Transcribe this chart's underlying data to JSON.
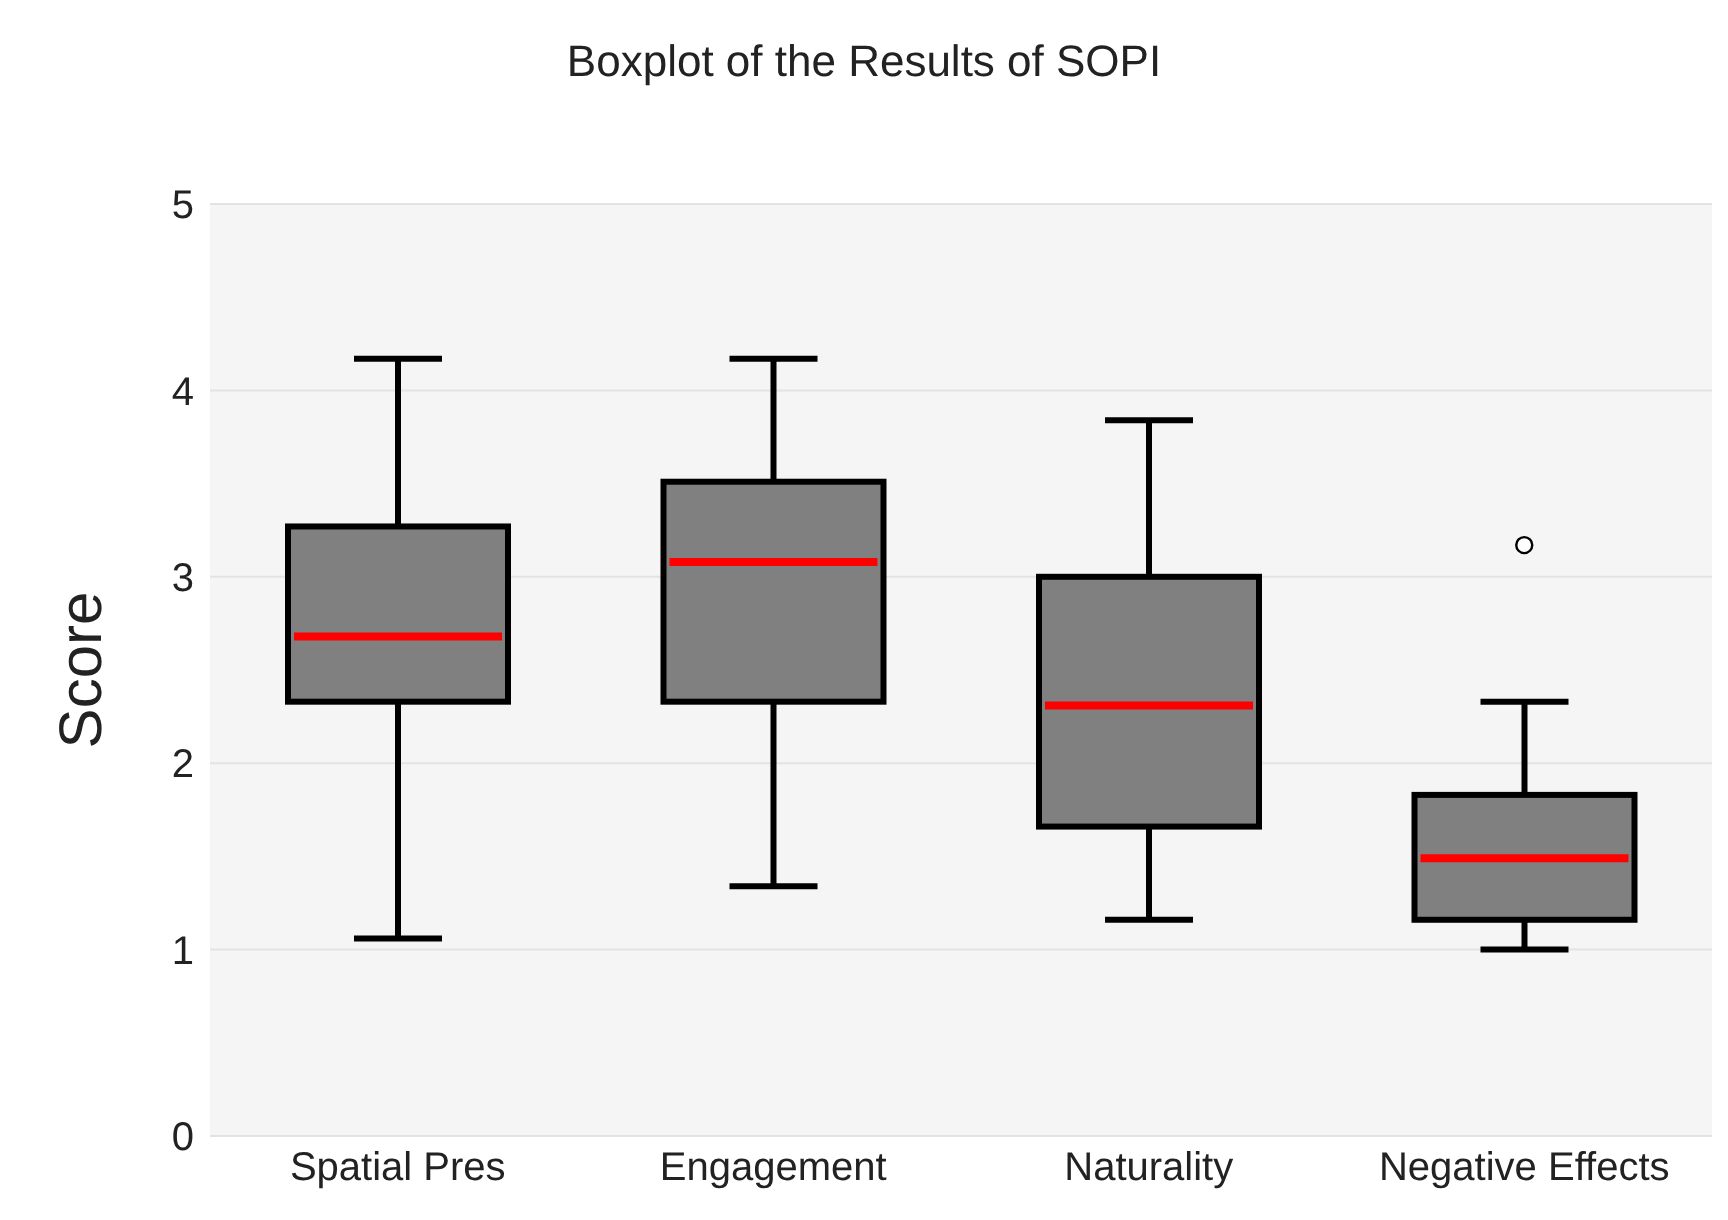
{
  "chart_data": {
    "type": "box",
    "title": "Boxplot of the Results of SOPI",
    "ylabel": "Score",
    "categories": [
      "Spatial Pres",
      "Engagement",
      "Naturality",
      "Negative Effects"
    ],
    "series": [
      {
        "color": "#808080",
        "boxes": [
          {
            "low": 1.06,
            "q1": 2.33,
            "median": 2.68,
            "q3": 3.27,
            "high": 4.17
          },
          {
            "low": 1.34,
            "q1": 2.33,
            "median": 3.08,
            "q3": 3.51,
            "high": 4.17
          },
          {
            "low": 1.16,
            "q1": 1.66,
            "median": 2.31,
            "q3": 3.0,
            "high": 3.84
          },
          {
            "low": 1.0,
            "q1": 1.16,
            "median": 1.49,
            "q3": 1.83,
            "high": 2.33,
            "outliers": [
              3.17
            ]
          }
        ]
      }
    ],
    "ylim": [
      0,
      5
    ],
    "yticks": [
      0,
      1,
      2,
      3,
      4,
      5
    ],
    "grid": "y"
  }
}
